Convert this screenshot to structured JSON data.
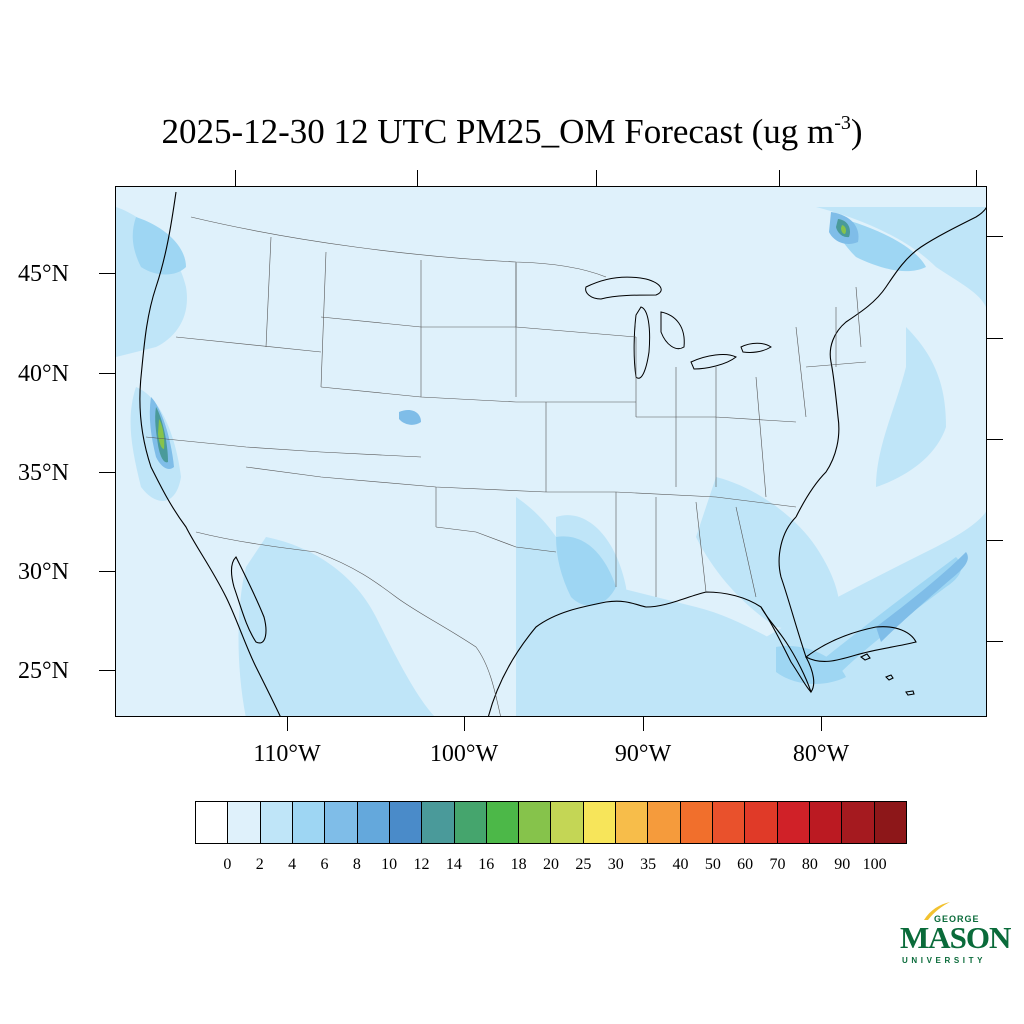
{
  "title": {
    "text": "2025-12-30 12 UTC PM25_OM Forecast (ug m",
    "superscript": "-3",
    "close": ")"
  },
  "axes": {
    "lat_labels": [
      "45°N",
      "40°N",
      "35°N",
      "30°N",
      "25°N"
    ],
    "lon_labels": [
      "110°W",
      "100°W",
      "90°W",
      "80°W"
    ]
  },
  "colorbar": {
    "labels": [
      "0",
      "2",
      "4",
      "6",
      "8",
      "10",
      "12",
      "14",
      "16",
      "18",
      "20",
      "25",
      "30",
      "35",
      "40",
      "50",
      "60",
      "70",
      "80",
      "90",
      "100"
    ],
    "colors": [
      "#ffffff",
      "#dff1fb",
      "#bfe5f8",
      "#9ed6f3",
      "#7fbde8",
      "#64a8dc",
      "#4a8bc9",
      "#4a9a9a",
      "#45a56d",
      "#4cb848",
      "#86c34b",
      "#c4d655",
      "#f7e55a",
      "#f7bd4a",
      "#f59b3c",
      "#f16f2c",
      "#e9512c",
      "#e03a28",
      "#d02128",
      "#bb1a22",
      "#a51a1f",
      "#8d1719"
    ]
  },
  "map": {
    "background_color": "#dff1fb",
    "light_blue": "#bfe5f8",
    "mid_blue": "#9ed6f3",
    "blue": "#7fbde8",
    "teal": "#4a9a9a",
    "green": "#86c34b"
  },
  "logo": {
    "top": "GEORGE",
    "main": "MASON",
    "bottom": "UNIVERSITY",
    "color": "#0a6b3a",
    "accent": "#f2c230"
  }
}
